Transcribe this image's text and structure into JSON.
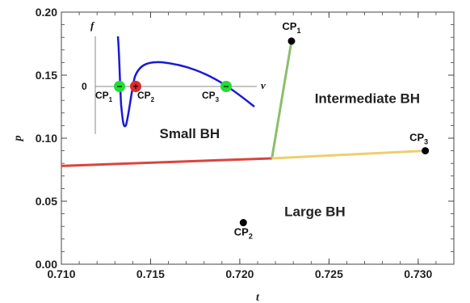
{
  "chart_data": {
    "type": "line",
    "xlabel": "t",
    "ylabel": "p",
    "xlim": [
      0.71,
      0.732
    ],
    "ylim": [
      0.0,
      0.2
    ],
    "x_ticks": [
      "0.710",
      "0.715",
      "0.720",
      "0.725",
      "0.730"
    ],
    "y_ticks": [
      "0.00",
      "0.05",
      "0.10",
      "0.15",
      "0.20"
    ],
    "x_tick_values": [
      0.71,
      0.715,
      0.72,
      0.725,
      0.73
    ],
    "y_tick_values": [
      0.0,
      0.05,
      0.1,
      0.15,
      0.2
    ],
    "series": [
      {
        "color": "#d9453d",
        "x": [
          0.71,
          0.7218
        ],
        "y": [
          0.078,
          0.084
        ]
      },
      {
        "color": "#8cbf6a",
        "x": [
          0.7218,
          0.7229
        ],
        "y": [
          0.084,
          0.177
        ]
      },
      {
        "color": "#eccf6e",
        "x": [
          0.7218,
          0.7304
        ],
        "y": [
          0.084,
          0.09
        ]
      }
    ],
    "points": [
      {
        "label": "CP",
        "sub": "1",
        "x": 0.7229,
        "y": 0.177
      },
      {
        "label": "CP",
        "sub": "2",
        "x": 0.7202,
        "y": 0.033
      },
      {
        "label": "CP",
        "sub": "3",
        "x": 0.7304,
        "y": 0.09
      }
    ],
    "regions": [
      {
        "text": "Intermediate BH",
        "x": 0.7242,
        "y": 0.128
      },
      {
        "text": "Small BH",
        "x": 0.7155,
        "y": 0.1
      },
      {
        "text": "Large BH",
        "x": 0.7225,
        "y": 0.038
      }
    ],
    "inset": {
      "xlabel": "v",
      "ylabel": "f",
      "zero_label": "0",
      "markers": [
        {
          "label": "CP",
          "sub": "1",
          "sign": "−",
          "color": "#22dd33"
        },
        {
          "label": "CP",
          "sub": "2",
          "sign": "+",
          "color": "#dd2a2a"
        },
        {
          "label": "CP",
          "sub": "3",
          "sign": "−",
          "color": "#22dd33"
        }
      ]
    }
  }
}
